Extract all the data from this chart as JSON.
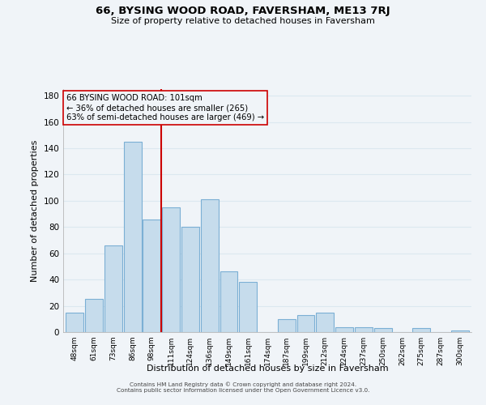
{
  "title": "66, BYSING WOOD ROAD, FAVERSHAM, ME13 7RJ",
  "subtitle": "Size of property relative to detached houses in Faversham",
  "xlabel": "Distribution of detached houses by size in Faversham",
  "ylabel": "Number of detached properties",
  "bar_color": "#c6dcec",
  "bar_edge_color": "#7bafd4",
  "categories": [
    "48sqm",
    "61sqm",
    "73sqm",
    "86sqm",
    "98sqm",
    "111sqm",
    "124sqm",
    "136sqm",
    "149sqm",
    "161sqm",
    "174sqm",
    "187sqm",
    "199sqm",
    "212sqm",
    "224sqm",
    "237sqm",
    "250sqm",
    "262sqm",
    "275sqm",
    "287sqm",
    "300sqm"
  ],
  "values": [
    15,
    25,
    66,
    145,
    86,
    95,
    80,
    101,
    46,
    38,
    0,
    10,
    13,
    15,
    4,
    4,
    3,
    0,
    3,
    0,
    1
  ],
  "ylim": [
    0,
    185
  ],
  "yticks": [
    0,
    20,
    40,
    60,
    80,
    100,
    120,
    140,
    160,
    180
  ],
  "vline_x": 4.5,
  "vline_color": "#cc0000",
  "annotation_text": "66 BYSING WOOD ROAD: 101sqm\n← 36% of detached houses are smaller (265)\n63% of semi-detached houses are larger (469) →",
  "footer_line1": "Contains HM Land Registry data © Crown copyright and database right 2024.",
  "footer_line2": "Contains public sector information licensed under the Open Government Licence v3.0.",
  "background_color": "#f0f4f8",
  "grid_color": "#dce8f0"
}
